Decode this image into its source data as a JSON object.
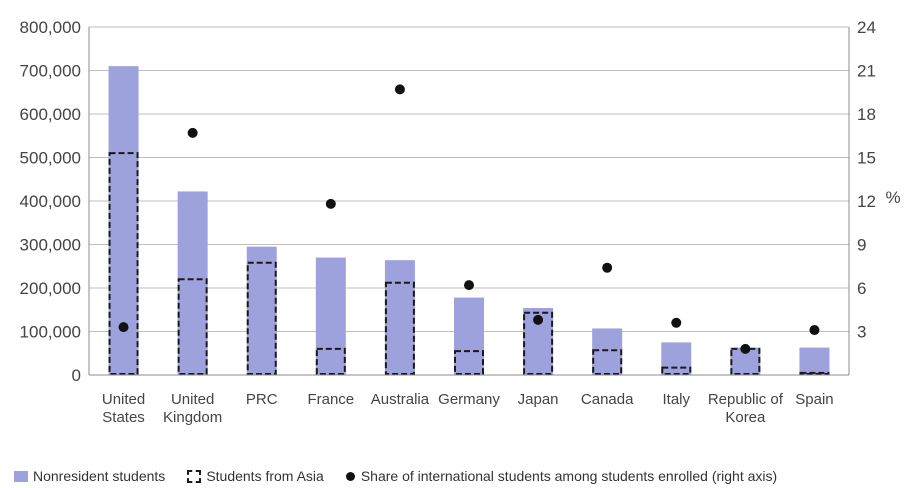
{
  "chart_data": {
    "type": "bar",
    "categories": [
      [
        "United",
        "States"
      ],
      [
        "United",
        "Kingdom"
      ],
      [
        "PRC"
      ],
      [
        "France"
      ],
      [
        "Australia"
      ],
      [
        "Germany"
      ],
      [
        "Japan"
      ],
      [
        "Canada"
      ],
      [
        "Italy"
      ],
      [
        "Republic of",
        "Korea"
      ],
      [
        "Spain"
      ]
    ],
    "series": [
      {
        "name": "Nonresident students",
        "axis": "left",
        "values": [
          710000,
          422000,
          295000,
          270000,
          264000,
          178000,
          154000,
          107000,
          75000,
          63000,
          63000
        ]
      },
      {
        "name": "Students from Asia",
        "axis": "left",
        "values": [
          510000,
          220000,
          258000,
          60000,
          212000,
          55000,
          143000,
          57000,
          17000,
          60000,
          5000
        ]
      },
      {
        "name": "Share of international students among students enrolled (right axis)",
        "axis": "right",
        "values": [
          3.3,
          16.7,
          null,
          11.8,
          19.7,
          6.2,
          3.8,
          7.4,
          3.6,
          1.8,
          3.1
        ]
      }
    ],
    "yticks_left": [
      "0",
      "100,000",
      "200,000",
      "300,000",
      "400,000",
      "500,000",
      "600,000",
      "700,000",
      "800,000"
    ],
    "yticks_right": [
      "3",
      "6",
      "9",
      "12",
      "15",
      "18",
      "21",
      "24"
    ],
    "ylim_left": [
      0,
      800000
    ],
    "ylim_right": [
      0,
      24
    ],
    "y2label": "%",
    "grid": true,
    "legend_position": "bottom",
    "colors": {
      "bar": "#9da2dc",
      "asia_outline": "#1a1a1a",
      "dot": "#111111",
      "grid": "#bfbfbf",
      "axis": "#8c8c8c"
    }
  }
}
